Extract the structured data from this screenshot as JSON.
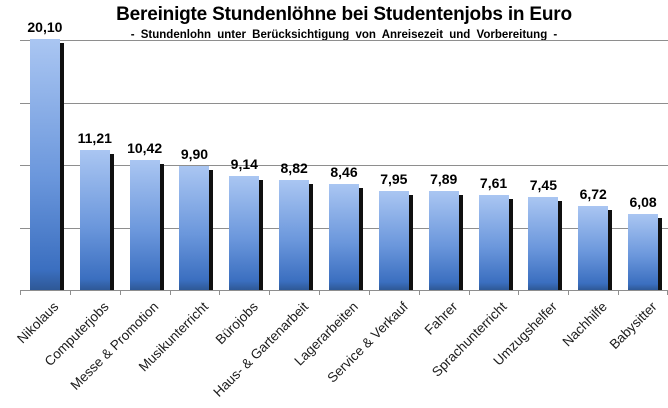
{
  "chart": {
    "title": "Bereinigte Stundenlöhne bei Studentenjobs in Euro",
    "subtitle": "- Stundenlohn unter Berücksichtigung von Anreisezeit und Vorbereitung -"
  },
  "chart_data": {
    "type": "bar",
    "title": "Bereinigte Stundenlöhne bei Studentenjobs in Euro",
    "subtitle": "- Stundenlohn unter Berücksichtigung von Anreisezeit und Vorbereitung -",
    "categories": [
      "Nikolaus",
      "Computerjobs",
      "Messe & Promotion",
      "Musikunterricht",
      "Bürojobs",
      "Haus- & Gartenarbeit",
      "Lagerarbeiten",
      "Service & Verkauf",
      "Fahrer",
      "Sprachunterricht",
      "Umzugshelfer",
      "Nachhilfe",
      "Babysitter"
    ],
    "values": [
      20.1,
      11.21,
      10.42,
      9.9,
      9.14,
      8.82,
      8.46,
      7.95,
      7.89,
      7.61,
      7.45,
      6.72,
      6.08
    ],
    "value_labels": [
      "20,10",
      "11,21",
      "10,42",
      "9,90",
      "9,14",
      "8,82",
      "8,46",
      "7,95",
      "7,89",
      "7,61",
      "7,45",
      "6,72",
      "6,08"
    ],
    "xlabel": "",
    "ylabel": "",
    "ylim": [
      0,
      20
    ],
    "gridline_values": [
      5,
      10,
      15,
      20
    ],
    "grid": true,
    "legend": "none",
    "unit": "Euro",
    "colors": {
      "bar_gradient_top": "#aac6f2",
      "bar_gradient_bottom": "#3b6fc0",
      "bar_shadow": "#101010",
      "gridline": "#8e8e8e",
      "text": "#000000"
    }
  }
}
